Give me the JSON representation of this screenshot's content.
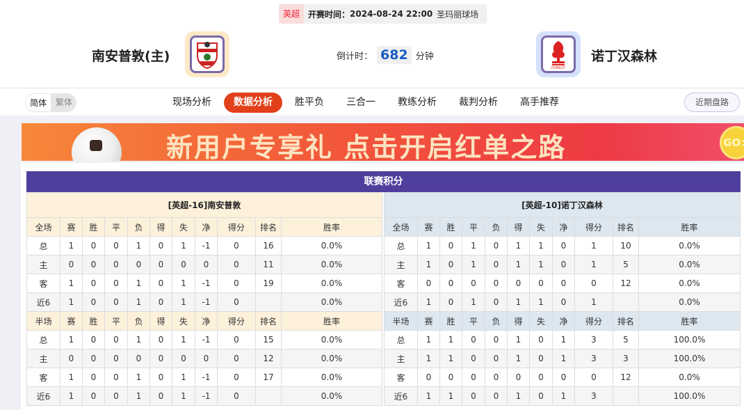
{
  "match": {
    "league": "英超",
    "kickoff_label": "开赛时间：",
    "kickoff": "2024-08-24 22:00",
    "venue": "圣玛丽球场"
  },
  "home_team": {
    "name": "南安普敦(主)",
    "logo": "southampton-crest"
  },
  "away_team": {
    "name": "诺丁汉森林",
    "logo": "nottingham-forest-crest"
  },
  "countdown": {
    "label": "倒计时：",
    "value": "682",
    "unit": "分钟"
  },
  "lang": {
    "simplified": "简体",
    "traditional": "繁体"
  },
  "tabs": [
    "现场分析",
    "数据分析",
    "胜平负",
    "三合一",
    "教练分析",
    "裁判分析",
    "高手推荐"
  ],
  "active_tab": "数据分析",
  "recent_button": "近期盘路",
  "banner": {
    "text": "新用户专享礼  点击开启红单之路",
    "go": "GO>"
  },
  "section_title": "联赛积分",
  "colors": {
    "accent": "#e2401a",
    "section": "#503e9c",
    "home_row": "#e00000",
    "away_row": "#0000cc"
  },
  "columns": [
    "赛",
    "胜",
    "平",
    "负",
    "得",
    "失",
    "净",
    "得分",
    "排名",
    "胜率"
  ],
  "tables": [
    {
      "title": "[英超-16]南安普敦",
      "full": {
        "label": "全场",
        "rows": [
          [
            "总",
            "1",
            "0",
            "0",
            "1",
            "0",
            "1",
            "-1",
            "0",
            "16",
            "0.0%"
          ],
          [
            "主",
            "0",
            "0",
            "0",
            "0",
            "0",
            "0",
            "0",
            "0",
            "11",
            "0.0%"
          ],
          [
            "客",
            "1",
            "0",
            "0",
            "1",
            "0",
            "1",
            "-1",
            "0",
            "19",
            "0.0%"
          ],
          [
            "近6",
            "1",
            "0",
            "0",
            "1",
            "0",
            "1",
            "-1",
            "0",
            "",
            "0.0%"
          ]
        ]
      },
      "half": {
        "label": "半场",
        "rows": [
          [
            "总",
            "1",
            "0",
            "0",
            "1",
            "0",
            "1",
            "-1",
            "0",
            "15",
            "0.0%"
          ],
          [
            "主",
            "0",
            "0",
            "0",
            "0",
            "0",
            "0",
            "0",
            "0",
            "12",
            "0.0%"
          ],
          [
            "客",
            "1",
            "0",
            "0",
            "1",
            "0",
            "1",
            "-1",
            "0",
            "17",
            "0.0%"
          ],
          [
            "近6",
            "1",
            "0",
            "0",
            "1",
            "0",
            "1",
            "-1",
            "0",
            "",
            "0.0%"
          ]
        ]
      }
    },
    {
      "title": "[英超-10]诺丁汉森林",
      "full": {
        "label": "全场",
        "rows": [
          [
            "总",
            "1",
            "0",
            "1",
            "0",
            "1",
            "1",
            "0",
            "1",
            "10",
            "0.0%"
          ],
          [
            "主",
            "1",
            "0",
            "1",
            "0",
            "1",
            "1",
            "0",
            "1",
            "5",
            "0.0%"
          ],
          [
            "客",
            "0",
            "0",
            "0",
            "0",
            "0",
            "0",
            "0",
            "0",
            "12",
            "0.0%"
          ],
          [
            "近6",
            "1",
            "0",
            "1",
            "0",
            "1",
            "1",
            "0",
            "1",
            "",
            "0.0%"
          ]
        ]
      },
      "half": {
        "label": "半场",
        "rows": [
          [
            "总",
            "1",
            "1",
            "0",
            "0",
            "1",
            "0",
            "1",
            "3",
            "5",
            "100.0%"
          ],
          [
            "主",
            "1",
            "1",
            "0",
            "0",
            "1",
            "0",
            "1",
            "3",
            "3",
            "100.0%"
          ],
          [
            "客",
            "0",
            "0",
            "0",
            "0",
            "0",
            "0",
            "0",
            "0",
            "12",
            "0.0%"
          ],
          [
            "近6",
            "1",
            "1",
            "0",
            "0",
            "1",
            "0",
            "1",
            "3",
            "",
            "100.0%"
          ]
        ]
      }
    }
  ]
}
